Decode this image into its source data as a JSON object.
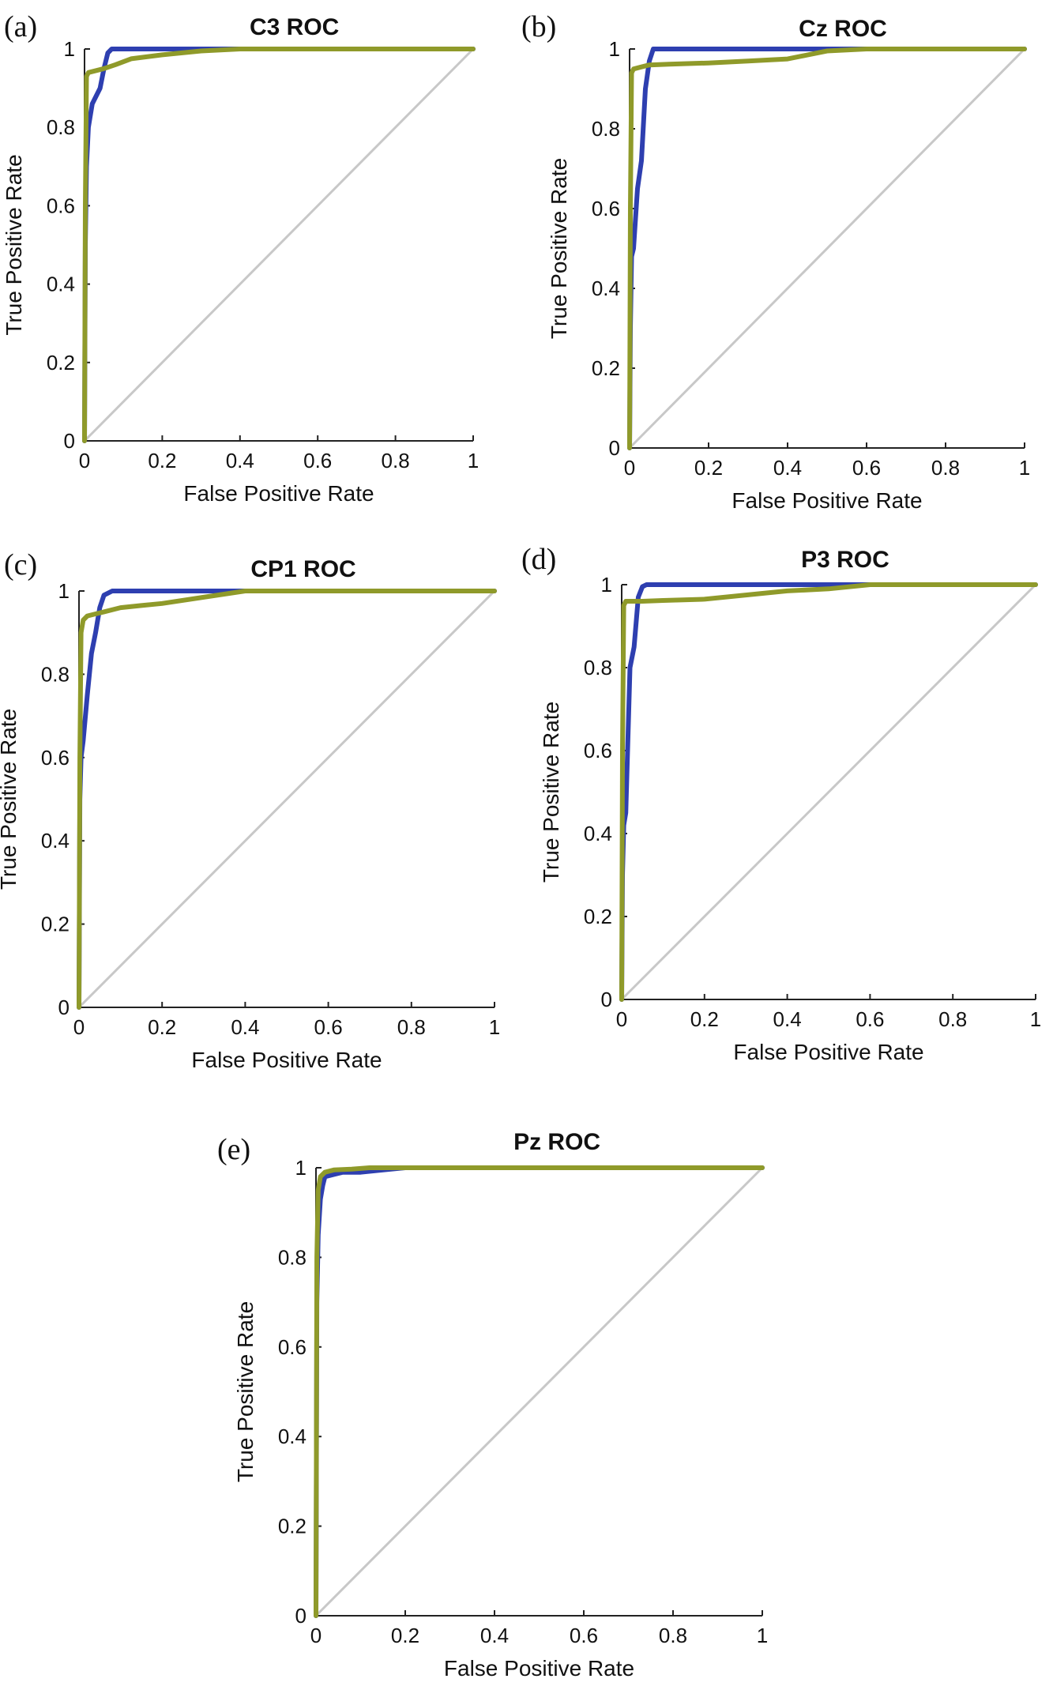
{
  "colors": {
    "series_blue": "#2e3fb0",
    "series_olive": "#8f9a2a",
    "diagonal": "#c8c8c8"
  },
  "chart_data": [
    {
      "type": "line",
      "panel_label": "(a)",
      "title": "C3 ROC",
      "xlabel": "False Positive Rate",
      "ylabel": "True Positive Rate",
      "xlim": [
        0,
        1
      ],
      "ylim": [
        0,
        1
      ],
      "xticks": [
        "0",
        "0.2",
        "0.4",
        "0.6",
        "0.8",
        "1"
      ],
      "yticks": [
        "0",
        "0.2",
        "0.4",
        "0.6",
        "0.8",
        "1"
      ],
      "series": [
        {
          "name": "blue",
          "x": [
            0,
            0.002,
            0.005,
            0.01,
            0.02,
            0.04,
            0.05,
            0.06,
            0.07,
            0.1,
            0.2,
            0.3,
            0.5,
            0.7,
            1
          ],
          "y": [
            0,
            0.5,
            0.7,
            0.8,
            0.86,
            0.9,
            0.95,
            0.99,
            1.0,
            1.0,
            1.0,
            1.0,
            1.0,
            1.0,
            1.0
          ]
        },
        {
          "name": "olive",
          "x": [
            0,
            0.002,
            0.005,
            0.01,
            0.03,
            0.05,
            0.08,
            0.12,
            0.2,
            0.3,
            0.4,
            0.6,
            1
          ],
          "y": [
            0,
            0.6,
            0.93,
            0.94,
            0.945,
            0.95,
            0.96,
            0.975,
            0.985,
            0.995,
            1.0,
            1.0,
            1.0
          ]
        },
        {
          "name": "diagonal",
          "x": [
            0,
            1
          ],
          "y": [
            0,
            1
          ]
        }
      ]
    },
    {
      "type": "line",
      "panel_label": "(b)",
      "title": "Cz ROC",
      "xlabel": "False Positive Rate",
      "ylabel": "True Positive Rate",
      "xlim": [
        0,
        1
      ],
      "ylim": [
        0,
        1
      ],
      "xticks": [
        "0",
        "0.2",
        "0.4",
        "0.6",
        "0.8",
        "1"
      ],
      "yticks": [
        "0",
        "0.2",
        "0.4",
        "0.6",
        "0.8",
        "1"
      ],
      "series": [
        {
          "name": "blue",
          "x": [
            0,
            0.002,
            0.005,
            0.01,
            0.02,
            0.03,
            0.04,
            0.05,
            0.06,
            0.1,
            0.3,
            0.5,
            0.7,
            1
          ],
          "y": [
            0,
            0.3,
            0.48,
            0.5,
            0.65,
            0.72,
            0.9,
            0.97,
            1.0,
            1.0,
            1.0,
            1.0,
            1.0,
            1.0
          ]
        },
        {
          "name": "olive",
          "x": [
            0,
            0.002,
            0.005,
            0.01,
            0.03,
            0.05,
            0.1,
            0.2,
            0.3,
            0.4,
            0.45,
            0.5,
            0.6,
            1
          ],
          "y": [
            0,
            0.6,
            0.94,
            0.95,
            0.955,
            0.96,
            0.962,
            0.965,
            0.97,
            0.975,
            0.985,
            0.995,
            1.0,
            1.0
          ]
        },
        {
          "name": "diagonal",
          "x": [
            0,
            1
          ],
          "y": [
            0,
            1
          ]
        }
      ]
    },
    {
      "type": "line",
      "panel_label": "(c)",
      "title": "CP1 ROC",
      "xlabel": "False Positive Rate",
      "ylabel": "True Positive Rate",
      "xlim": [
        0,
        1
      ],
      "ylim": [
        0,
        1
      ],
      "xticks": [
        "0",
        "0.2",
        "0.4",
        "0.6",
        "0.8",
        "1"
      ],
      "yticks": [
        "0",
        "0.2",
        "0.4",
        "0.6",
        "0.8",
        "1"
      ],
      "series": [
        {
          "name": "blue",
          "x": [
            0,
            0.002,
            0.005,
            0.01,
            0.02,
            0.03,
            0.04,
            0.05,
            0.06,
            0.08,
            0.2,
            0.3,
            0.4,
            0.6,
            1
          ],
          "y": [
            0,
            0.5,
            0.6,
            0.64,
            0.75,
            0.85,
            0.9,
            0.96,
            0.99,
            1.0,
            1.0,
            1.0,
            1.0,
            1.0,
            1.0
          ]
        },
        {
          "name": "olive",
          "x": [
            0,
            0.002,
            0.005,
            0.01,
            0.02,
            0.04,
            0.06,
            0.1,
            0.15,
            0.2,
            0.3,
            0.4,
            0.6,
            1
          ],
          "y": [
            0,
            0.6,
            0.9,
            0.93,
            0.94,
            0.945,
            0.95,
            0.96,
            0.965,
            0.97,
            0.985,
            1.0,
            1.0,
            1.0
          ]
        },
        {
          "name": "diagonal",
          "x": [
            0,
            1
          ],
          "y": [
            0,
            1
          ]
        }
      ]
    },
    {
      "type": "line",
      "panel_label": "(d)",
      "title": "P3 ROC",
      "xlabel": "False Positive Rate",
      "ylabel": "True Positive Rate",
      "xlim": [
        0,
        1
      ],
      "ylim": [
        0,
        1
      ],
      "xticks": [
        "0",
        "0.2",
        "0.4",
        "0.6",
        "0.8",
        "1"
      ],
      "yticks": [
        "0",
        "0.2",
        "0.4",
        "0.6",
        "0.8",
        "1"
      ],
      "series": [
        {
          "name": "blue",
          "x": [
            0,
            0.002,
            0.005,
            0.01,
            0.02,
            0.03,
            0.04,
            0.05,
            0.06,
            0.1,
            0.3,
            0.5,
            0.58,
            0.8,
            1
          ],
          "y": [
            0,
            0.3,
            0.42,
            0.45,
            0.8,
            0.85,
            0.97,
            0.995,
            1.0,
            1.0,
            1.0,
            1.0,
            1.0,
            1.0,
            1.0
          ]
        },
        {
          "name": "olive",
          "x": [
            0,
            0.002,
            0.005,
            0.01,
            0.05,
            0.1,
            0.2,
            0.3,
            0.4,
            0.5,
            0.6,
            0.8,
            1
          ],
          "y": [
            0,
            0.6,
            0.95,
            0.96,
            0.96,
            0.962,
            0.965,
            0.975,
            0.985,
            0.99,
            1.0,
            1.0,
            1.0
          ]
        },
        {
          "name": "diagonal",
          "x": [
            0,
            1
          ],
          "y": [
            0,
            1
          ]
        }
      ]
    },
    {
      "type": "line",
      "panel_label": "(e)",
      "title": "Pz ROC",
      "xlabel": "False Positive Rate",
      "ylabel": "True Positive Rate",
      "xlim": [
        0,
        1
      ],
      "ylim": [
        0,
        1
      ],
      "xticks": [
        "0",
        "0.2",
        "0.4",
        "0.6",
        "0.8",
        "1"
      ],
      "yticks": [
        "0",
        "0.2",
        "0.4",
        "0.6",
        "0.8",
        "1"
      ],
      "series": [
        {
          "name": "blue",
          "x": [
            0,
            0.002,
            0.005,
            0.01,
            0.015,
            0.02,
            0.04,
            0.06,
            0.1,
            0.15,
            0.2,
            0.4,
            1
          ],
          "y": [
            0,
            0.7,
            0.85,
            0.93,
            0.96,
            0.98,
            0.985,
            0.99,
            0.99,
            0.995,
            1.0,
            1.0,
            1.0
          ]
        },
        {
          "name": "olive",
          "x": [
            0,
            0.002,
            0.005,
            0.01,
            0.02,
            0.04,
            0.08,
            0.12,
            0.2,
            0.3,
            1
          ],
          "y": [
            0,
            0.8,
            0.95,
            0.98,
            0.99,
            0.995,
            0.997,
            1.0,
            1.0,
            1.0,
            1.0
          ]
        },
        {
          "name": "diagonal",
          "x": [
            0,
            1
          ],
          "y": [
            0,
            1
          ]
        }
      ]
    }
  ]
}
